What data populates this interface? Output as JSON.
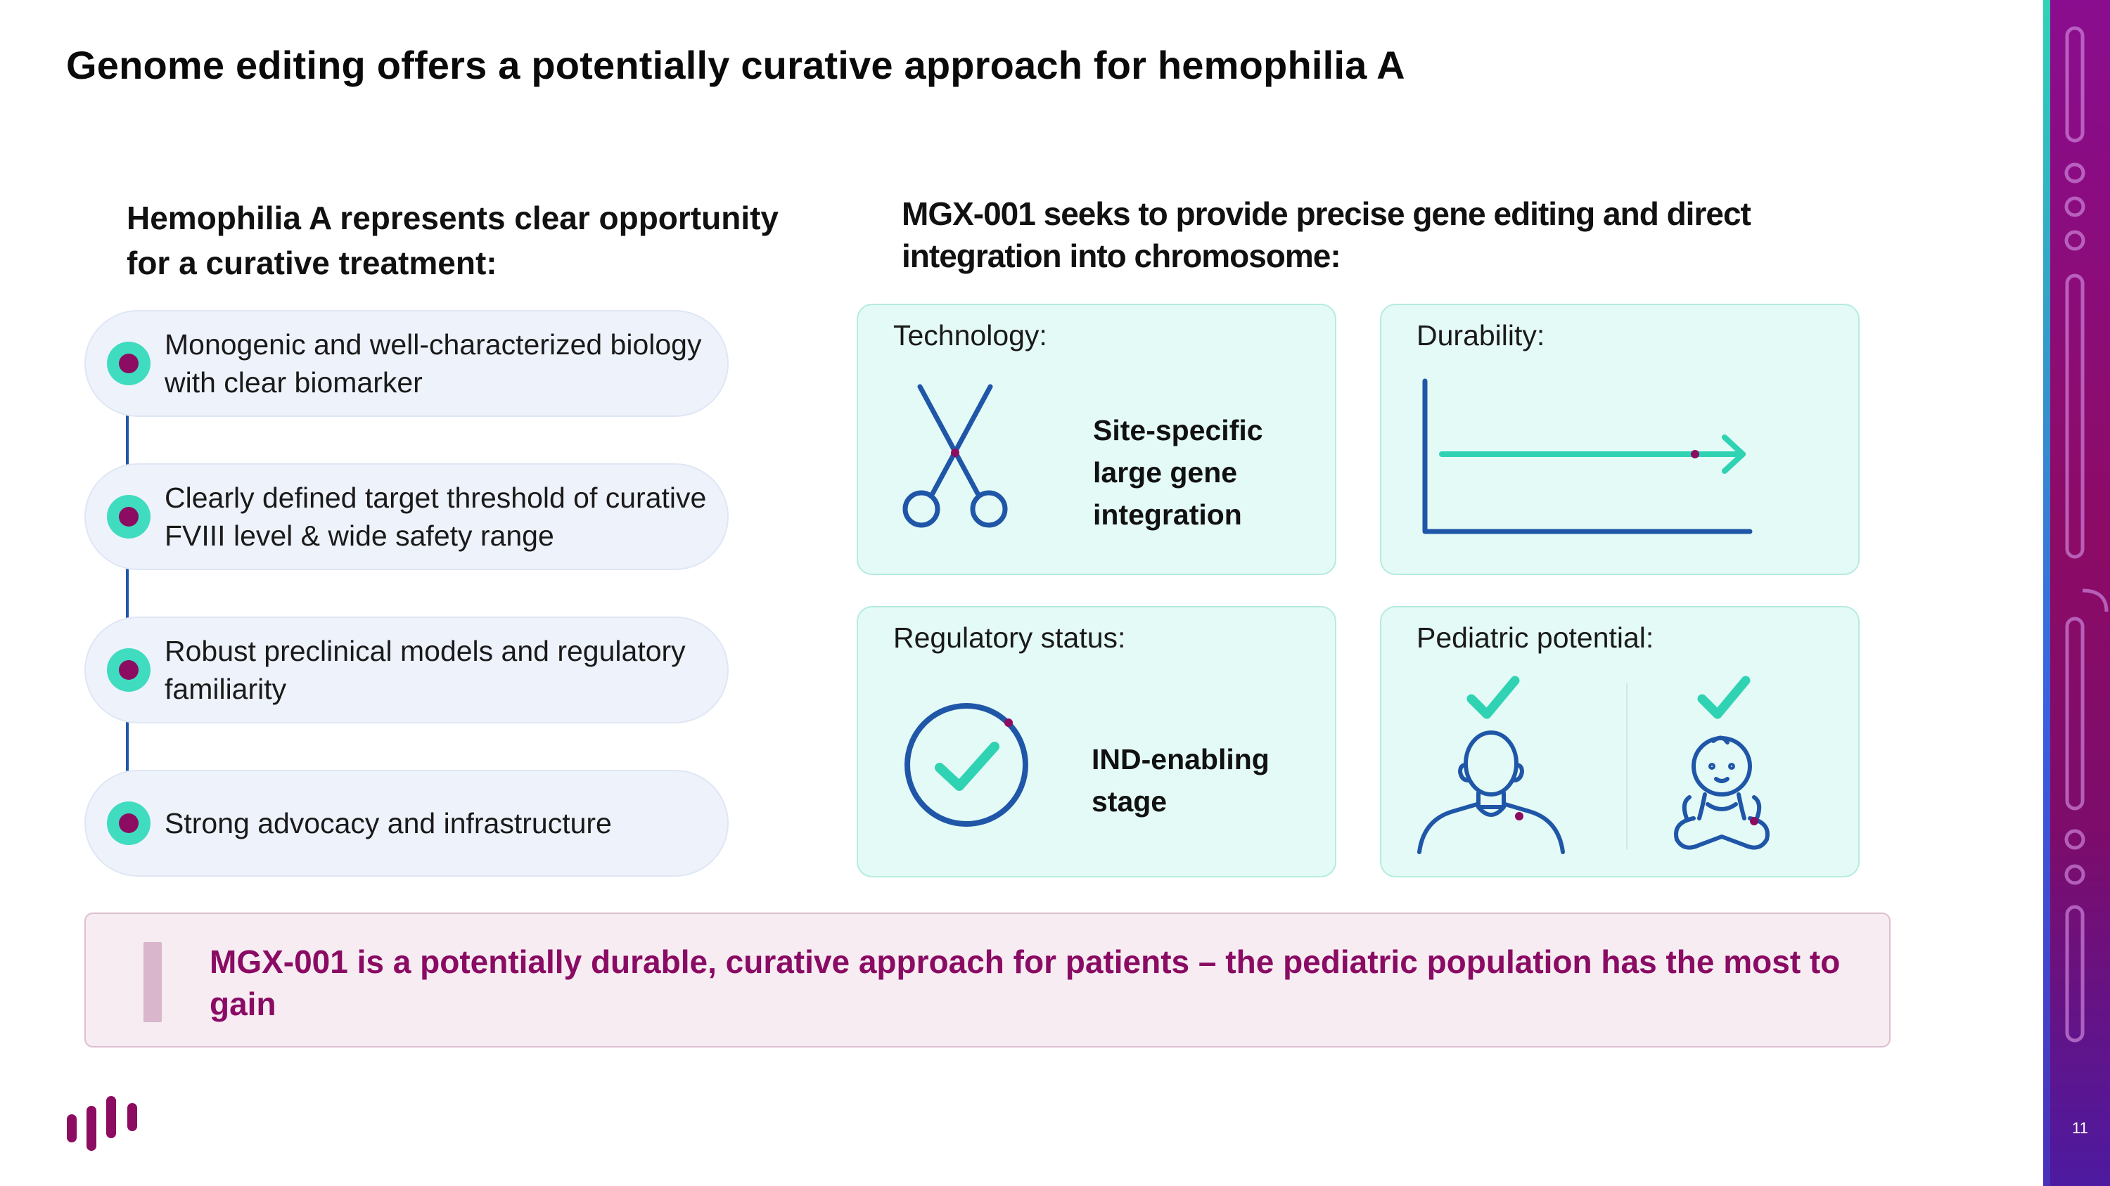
{
  "title": "Genome editing offers a potentially curative approach for hemophilia A",
  "left_heading": "Hemophilia A represents clear opportunity for a curative treatment:",
  "right_heading": "MGX-001 seeks to provide precise gene editing and direct integration into chromosome:",
  "bullets": [
    "Monogenic and well-characterized biology with clear biomarker",
    "Clearly defined target threshold of curative FVIII level & wide safety range",
    "Robust preclinical models and regulatory familiarity",
    "Strong advocacy and infrastructure"
  ],
  "cards": {
    "technology": {
      "label": "Technology:",
      "value": "Site-specific large gene integration",
      "icon": "scissors-icon"
    },
    "durability": {
      "label": "Durability:",
      "icon": "durability-chart-icon"
    },
    "regulatory": {
      "label": "Regulatory status:",
      "value": "IND-enabling stage",
      "icon": "check-circle-icon"
    },
    "pediatric": {
      "label": "Pediatric potential:",
      "icons": [
        "adult-check-icon",
        "baby-check-icon"
      ]
    }
  },
  "banner": "MGX-001 is a potentially durable, curative approach for patients – the pediatric population has the most to gain",
  "page_number": "11",
  "colors": {
    "accent_magenta": "#8c0c61",
    "accent_teal": "#3fdcc0",
    "accent_blue": "#1f56a8",
    "card_bg": "#e4faf6",
    "bullet_bg": "#eef2fb",
    "banner_bg": "#f6ecf2"
  }
}
